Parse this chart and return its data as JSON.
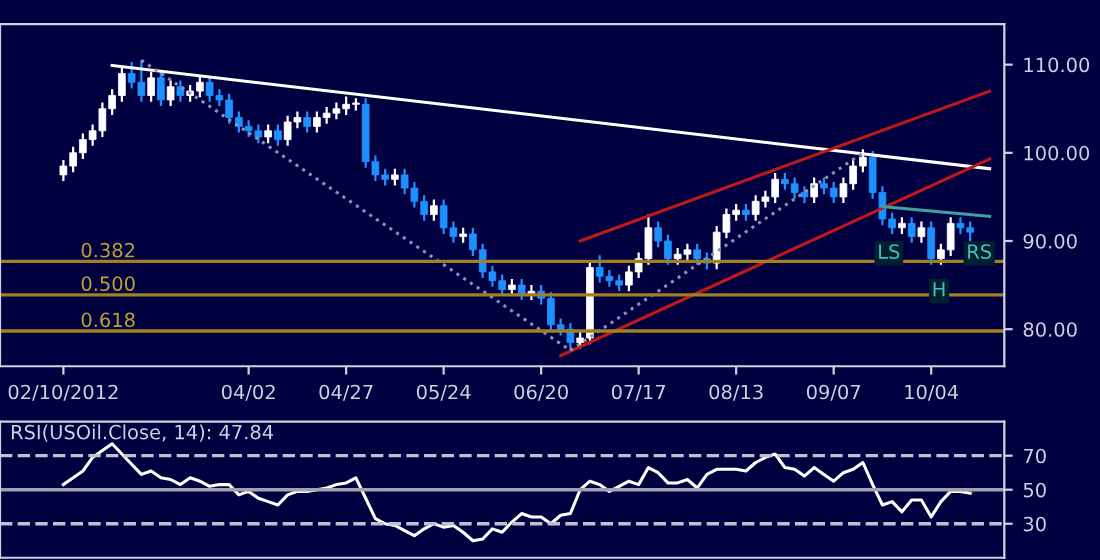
{
  "chart_data": [
    {
      "type": "candlestick",
      "categories": [
        "02/10/2012",
        null,
        null,
        null,
        null,
        null,
        null,
        null,
        null,
        null,
        null,
        null,
        null,
        null,
        null,
        null,
        null,
        null,
        null,
        "04/02",
        null,
        null,
        null,
        null,
        null,
        null,
        null,
        null,
        null,
        "04/27",
        null,
        null,
        null,
        null,
        null,
        null,
        null,
        null,
        null,
        "05/24",
        null,
        null,
        null,
        null,
        null,
        null,
        null,
        null,
        null,
        "06/20",
        null,
        null,
        null,
        null,
        null,
        null,
        null,
        null,
        null,
        "07/17",
        null,
        null,
        null,
        null,
        null,
        null,
        null,
        null,
        null,
        "08/13",
        null,
        null,
        null,
        null,
        null,
        null,
        null,
        null,
        null,
        "09/07",
        null,
        null,
        null,
        null,
        null,
        null,
        null,
        null,
        null,
        "10/04",
        null,
        null,
        null,
        null,
        null,
        null
      ],
      "ohlc": [
        [
          97.5,
          99.2,
          96.8,
          98.5
        ],
        [
          98.5,
          100.7,
          97.8,
          100
        ],
        [
          100,
          102.2,
          99.3,
          101.5
        ],
        [
          101.5,
          103.2,
          100.8,
          102.5
        ],
        [
          102.5,
          105.7,
          101.8,
          105
        ],
        [
          105,
          107.2,
          104.3,
          106.5
        ],
        [
          106.5,
          109.7,
          105.8,
          109
        ],
        [
          109,
          110.3,
          107.3,
          108
        ],
        [
          108,
          110.5,
          105.8,
          106.5
        ],
        [
          106.5,
          109.2,
          105.8,
          108.5
        ],
        [
          108.5,
          109.2,
          105.3,
          106
        ],
        [
          106,
          108.2,
          105.3,
          107.5
        ],
        [
          107.5,
          108.2,
          105.8,
          106.5
        ],
        [
          106.5,
          107.7,
          105.8,
          107
        ],
        [
          107,
          108.7,
          106.3,
          108
        ],
        [
          108,
          108.7,
          105.8,
          106.5
        ],
        [
          106.5,
          107.2,
          105.3,
          106
        ],
        [
          106,
          106.7,
          103.3,
          104
        ],
        [
          104,
          104.7,
          102.3,
          103
        ],
        [
          103,
          103.7,
          101.8,
          102.5
        ],
        [
          102.5,
          103.2,
          101.1,
          101.8
        ],
        [
          101.8,
          103.2,
          101.1,
          102.5
        ],
        [
          102.5,
          103.2,
          100.8,
          101.5
        ],
        [
          101.5,
          104.2,
          100.8,
          103.5
        ],
        [
          103.5,
          104.7,
          102.8,
          104
        ],
        [
          104,
          104.7,
          102.3,
          103
        ],
        [
          103,
          104.7,
          102.3,
          104
        ],
        [
          104,
          105.2,
          103.3,
          104.5
        ],
        [
          104.5,
          105.7,
          103.8,
          105
        ],
        [
          105,
          106.4,
          104.3,
          105.5
        ],
        [
          105.5,
          106.2,
          104.8,
          105.5
        ],
        [
          105.5,
          106.2,
          98.3,
          99
        ],
        [
          99,
          99.7,
          96.8,
          97.5
        ],
        [
          97.5,
          98.2,
          96.3,
          97
        ],
        [
          97,
          98.2,
          96.3,
          97.5
        ],
        [
          97.5,
          98.2,
          95.3,
          96
        ],
        [
          96,
          96.7,
          93.8,
          94.5
        ],
        [
          94.5,
          95.2,
          92.3,
          93
        ],
        [
          93,
          94.7,
          92.3,
          94
        ],
        [
          94,
          94.7,
          90.8,
          91.5
        ],
        [
          91.5,
          92.2,
          89.8,
          90.5
        ],
        [
          90.5,
          91.5,
          89.8,
          90.8
        ],
        [
          90.8,
          91.5,
          88.3,
          89
        ],
        [
          89,
          89.7,
          85.8,
          86.5
        ],
        [
          86.5,
          87.2,
          84.8,
          85.5
        ],
        [
          85.5,
          86.2,
          83.8,
          84.5
        ],
        [
          84.5,
          85.7,
          83.8,
          85
        ],
        [
          85,
          85.7,
          83.3,
          84
        ],
        [
          84,
          85,
          83.3,
          84.3
        ],
        [
          84.3,
          85,
          82.8,
          83.5
        ],
        [
          83.5,
          84.2,
          79.8,
          80.5
        ],
        [
          80.5,
          81.2,
          79.3,
          80
        ],
        [
          80,
          80.7,
          77.6,
          78.5
        ],
        [
          78.5,
          79.7,
          77.8,
          79
        ],
        [
          79,
          87.7,
          78.3,
          87
        ],
        [
          87,
          88.4,
          85.3,
          86
        ],
        [
          86,
          86.7,
          84.8,
          85.5
        ],
        [
          85.5,
          86.2,
          84.3,
          85
        ],
        [
          85,
          87.2,
          84.3,
          86.5
        ],
        [
          86.5,
          88.7,
          85.8,
          88
        ],
        [
          88,
          93,
          87.3,
          91.5
        ],
        [
          91.5,
          92.2,
          89.3,
          90
        ],
        [
          90,
          90.7,
          87.3,
          88
        ],
        [
          88,
          89.2,
          87.3,
          88.5
        ],
        [
          88.5,
          89.7,
          87.8,
          89
        ],
        [
          89,
          89.7,
          87.3,
          88
        ],
        [
          88,
          88.7,
          86.8,
          87.5
        ],
        [
          87.5,
          91.7,
          86.8,
          91
        ],
        [
          91,
          93.7,
          90.3,
          93
        ],
        [
          93,
          94.2,
          92.3,
          93.5
        ],
        [
          93.5,
          94.2,
          92.3,
          93
        ],
        [
          93,
          95.2,
          92.3,
          94.5
        ],
        [
          94.5,
          95.7,
          93.8,
          95
        ],
        [
          95,
          97.7,
          94.3,
          97
        ],
        [
          97,
          97.7,
          95.8,
          96.5
        ],
        [
          96.5,
          97.2,
          94.8,
          95.5
        ],
        [
          95.5,
          96.2,
          94.3,
          95
        ],
        [
          95,
          97.2,
          94.3,
          96.5
        ],
        [
          96.5,
          97.2,
          95.3,
          96
        ],
        [
          96,
          96.7,
          94.3,
          95
        ],
        [
          95,
          97.2,
          94.3,
          96.5
        ],
        [
          96.5,
          99.2,
          95.8,
          98.5
        ],
        [
          98.5,
          100.4,
          97.8,
          99.5
        ],
        [
          99.5,
          100.2,
          94.8,
          95.5
        ],
        [
          95.5,
          96.2,
          91.8,
          92.5
        ],
        [
          92.5,
          93.2,
          90.8,
          91.5
        ],
        [
          91.5,
          92.7,
          90.8,
          92
        ],
        [
          92,
          92.7,
          89.8,
          90.5
        ],
        [
          90.5,
          92.2,
          89.8,
          91.5
        ],
        [
          91.5,
          92.2,
          87.3,
          88
        ],
        [
          88,
          89.7,
          87.3,
          89
        ],
        [
          89,
          92.7,
          88.3,
          92
        ],
        [
          92,
          92.7,
          90.8,
          91.5
        ],
        [
          91.5,
          92.2,
          89.8,
          91
        ],
        null,
        null
      ],
      "colors": [
        "#ffffff",
        "#ffffff",
        "#ffffff",
        "#ffffff",
        "#ffffff",
        "#ffffff",
        "#ffffff",
        "#1e90ff",
        "#1e90ff",
        "#ffffff",
        "#1e90ff",
        "#ffffff",
        "#1e90ff",
        "#ffffff",
        "#ffffff",
        "#1e90ff",
        "#1e90ff",
        "#1e90ff",
        "#1e90ff",
        "#1e90ff",
        "#1e90ff",
        "#ffffff",
        "#1e90ff",
        "#ffffff",
        "#ffffff",
        "#1e90ff",
        "#ffffff",
        "#ffffff",
        "#ffffff",
        "#ffffff",
        "#ffffff",
        "#1e90ff",
        "#1e90ff",
        "#1e90ff",
        "#ffffff",
        "#1e90ff",
        "#1e90ff",
        "#1e90ff",
        "#ffffff",
        "#1e90ff",
        "#1e90ff",
        "#ffffff",
        "#1e90ff",
        "#1e90ff",
        "#1e90ff",
        "#1e90ff",
        "#ffffff",
        "#1e90ff",
        "#ffffff",
        "#1e90ff",
        "#1e90ff",
        "#1e90ff",
        "#1e90ff",
        "#ffffff",
        "#ffffff",
        "#1e90ff",
        "#1e90ff",
        "#1e90ff",
        "#ffffff",
        "#ffffff",
        "#ffffff",
        "#1e90ff",
        "#1e90ff",
        "#ffffff",
        "#ffffff",
        "#1e90ff",
        "#1e90ff",
        "#ffffff",
        "#ffffff",
        "#ffffff",
        "#1e90ff",
        "#ffffff",
        "#ffffff",
        "#ffffff",
        "#1e90ff",
        "#1e90ff",
        "#1e90ff",
        "#ffffff",
        "#1e90ff",
        "#1e90ff",
        "#ffffff",
        "#ffffff",
        "#ffffff",
        "#1e90ff",
        "#1e90ff",
        "#1e90ff",
        "#ffffff",
        "#1e90ff",
        "#ffffff",
        "#1e90ff",
        "#ffffff",
        "#ffffff",
        "#1e90ff",
        "#1e90ff",
        null,
        null
      ],
      "series": [
        {
          "type": "line",
          "color": "#ffffff",
          "line_style": "solid",
          "values": [
            null,
            null,
            null,
            null,
            null,
            109.9,
            null,
            null,
            null,
            null,
            null,
            null,
            null,
            null,
            null,
            null,
            null,
            null,
            null,
            null,
            null,
            null,
            null,
            null,
            null,
            null,
            null,
            null,
            null,
            null,
            null,
            null,
            null,
            null,
            null,
            null,
            null,
            null,
            null,
            null,
            null,
            null,
            null,
            null,
            null,
            null,
            null,
            null,
            null,
            null,
            null,
            null,
            null,
            null,
            null,
            null,
            null,
            null,
            null,
            null,
            null,
            null,
            null,
            null,
            null,
            null,
            null,
            null,
            null,
            null,
            null,
            null,
            null,
            null,
            null,
            null,
            null,
            null,
            null,
            null,
            null,
            null,
            null,
            null,
            null,
            null,
            null,
            null,
            null,
            null,
            null,
            null,
            null,
            null,
            null,
            98.2
          ]
        },
        {
          "type": "line",
          "color": "#c01818",
          "line_style": "solid",
          "values": [
            null,
            null,
            null,
            null,
            null,
            null,
            null,
            null,
            null,
            null,
            null,
            null,
            null,
            null,
            null,
            null,
            null,
            null,
            null,
            null,
            null,
            null,
            null,
            null,
            null,
            null,
            null,
            null,
            null,
            null,
            null,
            null,
            null,
            null,
            null,
            null,
            null,
            null,
            null,
            null,
            null,
            null,
            null,
            null,
            null,
            null,
            null,
            null,
            null,
            null,
            null,
            null,
            null,
            90,
            null,
            null,
            null,
            null,
            null,
            null,
            null,
            null,
            null,
            null,
            null,
            null,
            null,
            null,
            null,
            null,
            null,
            null,
            null,
            null,
            null,
            null,
            null,
            null,
            null,
            null,
            null,
            null,
            null,
            null,
            null,
            null,
            null,
            null,
            null,
            null,
            null,
            null,
            null,
            null,
            null,
            107
          ]
        },
        {
          "type": "line",
          "color": "#c01818",
          "line_style": "solid",
          "values": [
            null,
            null,
            null,
            null,
            null,
            null,
            null,
            null,
            null,
            null,
            null,
            null,
            null,
            null,
            null,
            null,
            null,
            null,
            null,
            null,
            null,
            null,
            null,
            null,
            null,
            null,
            null,
            null,
            null,
            null,
            null,
            null,
            null,
            null,
            null,
            null,
            null,
            null,
            null,
            null,
            null,
            null,
            null,
            null,
            null,
            null,
            null,
            null,
            null,
            null,
            null,
            77,
            null,
            null,
            null,
            null,
            null,
            null,
            null,
            null,
            null,
            null,
            null,
            null,
            null,
            null,
            null,
            null,
            null,
            null,
            null,
            null,
            null,
            null,
            null,
            null,
            null,
            null,
            null,
            null,
            null,
            null,
            null,
            null,
            null,
            null,
            null,
            null,
            null,
            null,
            null,
            null,
            null,
            null,
            null,
            99.3
          ]
        },
        {
          "type": "line",
          "color": "#9090b0",
          "line_style": "dotted",
          "values": [
            null,
            null,
            null,
            null,
            null,
            null,
            null,
            null,
            110.5,
            null,
            null,
            null,
            null,
            null,
            null,
            null,
            null,
            null,
            null,
            null,
            null,
            null,
            null,
            null,
            null,
            null,
            null,
            null,
            null,
            null,
            null,
            null,
            null,
            null,
            null,
            null,
            null,
            null,
            null,
            null,
            null,
            null,
            null,
            null,
            null,
            null,
            null,
            null,
            null,
            null,
            null,
            null,
            77.6,
            null,
            null,
            null,
            null,
            null,
            null,
            null,
            null,
            null,
            null,
            null,
            null,
            null,
            null,
            null,
            null,
            null,
            null,
            null,
            null,
            null,
            null,
            null,
            null,
            null,
            null,
            null,
            null,
            null,
            null,
            null,
            null,
            null,
            null,
            null,
            null,
            null,
            null,
            null,
            null,
            null,
            null,
            null
          ]
        },
        {
          "type": "line",
          "color": "#9090b0",
          "line_style": "dotted",
          "values": [
            null,
            null,
            null,
            null,
            null,
            null,
            null,
            null,
            null,
            null,
            null,
            null,
            null,
            null,
            null,
            null,
            null,
            null,
            null,
            null,
            null,
            null,
            null,
            null,
            null,
            null,
            null,
            null,
            null,
            null,
            null,
            null,
            null,
            null,
            null,
            null,
            null,
            null,
            null,
            null,
            null,
            null,
            null,
            null,
            null,
            null,
            null,
            null,
            null,
            null,
            null,
            null,
            77.6,
            null,
            null,
            null,
            null,
            null,
            null,
            null,
            null,
            null,
            null,
            null,
            null,
            null,
            null,
            null,
            null,
            null,
            null,
            null,
            null,
            null,
            null,
            null,
            null,
            null,
            null,
            null,
            null,
            null,
            100,
            null,
            null,
            null,
            null,
            null,
            null,
            null,
            null,
            null,
            null,
            null,
            null,
            null
          ]
        },
        {
          "type": "line",
          "color": "#40a0a0",
          "line_style": "solid",
          "values": [
            null,
            null,
            null,
            null,
            null,
            null,
            null,
            null,
            null,
            null,
            null,
            null,
            null,
            null,
            null,
            null,
            null,
            null,
            null,
            null,
            null,
            null,
            null,
            null,
            null,
            null,
            null,
            null,
            null,
            null,
            null,
            null,
            null,
            null,
            null,
            null,
            null,
            null,
            null,
            null,
            null,
            null,
            null,
            null,
            null,
            null,
            null,
            null,
            null,
            null,
            null,
            null,
            null,
            null,
            null,
            null,
            null,
            null,
            null,
            null,
            null,
            null,
            null,
            null,
            null,
            null,
            null,
            null,
            null,
            null,
            null,
            null,
            null,
            null,
            null,
            null,
            null,
            null,
            null,
            null,
            null,
            null,
            null,
            null,
            93.9,
            null,
            null,
            null,
            null,
            null,
            null,
            null,
            null,
            null,
            null,
            92.8
          ]
        }
      ],
      "ref_lines": [
        {
          "axis": "y",
          "value": 87.7,
          "color": "#a08020"
        },
        {
          "axis": "y",
          "value": 83.9,
          "color": "#a08020"
        },
        {
          "axis": "y",
          "value": 79.8,
          "color": "#a08020"
        }
      ],
      "annotations": [
        "LS",
        "H",
        "RS",
        {
          "text": "0.382",
          "y": 87.7
        },
        {
          "text": "0.500",
          "y": 83.9
        },
        {
          "text": "0.618",
          "y": 79.8
        }
      ],
      "ylim": [
        75.8,
        114.6
      ],
      "yticks": [
        {
          "value": 80,
          "label": "80.00"
        },
        {
          "value": 90,
          "label": "90.00"
        },
        {
          "value": 100,
          "label": "100.00"
        },
        {
          "value": 110,
          "label": "110.00"
        }
      ],
      "grid": false
    },
    {
      "type": "line",
      "title": "RSI(USOil.Close, 14): 47.84",
      "series": [
        {
          "color": "#ffffff",
          "values": [
            53,
            57,
            61,
            69,
            73,
            77,
            71,
            65,
            59,
            61,
            57,
            56,
            53,
            57,
            55,
            52,
            53,
            53,
            47,
            49,
            45,
            43,
            41,
            47,
            49,
            49,
            50,
            51,
            53,
            54,
            57,
            45,
            33,
            30,
            29,
            26,
            23,
            27,
            30,
            28,
            29,
            25,
            20,
            21,
            27,
            25,
            31,
            36,
            34,
            34,
            30,
            35,
            36,
            50,
            55,
            53,
            49,
            52,
            55,
            53,
            63,
            60,
            54,
            54,
            56,
            51,
            59,
            62,
            62,
            62,
            61,
            66,
            69,
            71,
            63,
            62,
            58,
            63,
            59,
            55,
            60,
            62,
            66,
            53,
            41,
            43,
            37,
            44,
            44,
            34,
            43,
            49,
            49,
            48,
            null,
            null
          ]
        }
      ],
      "ref_lines": [
        {
          "axis": "y",
          "value": 70,
          "color": "#c0c0d0",
          "line_style": "dashed"
        },
        {
          "axis": "y",
          "value": 50,
          "color": "#a0a0b0",
          "line_style": "solid"
        },
        {
          "axis": "y",
          "value": 30,
          "color": "#c0c0d0",
          "line_style": "dashed"
        }
      ],
      "ylim": [
        10,
        90
      ],
      "yticks": [
        30,
        50,
        70
      ],
      "tick_labels": "y",
      "grid": false
    }
  ]
}
